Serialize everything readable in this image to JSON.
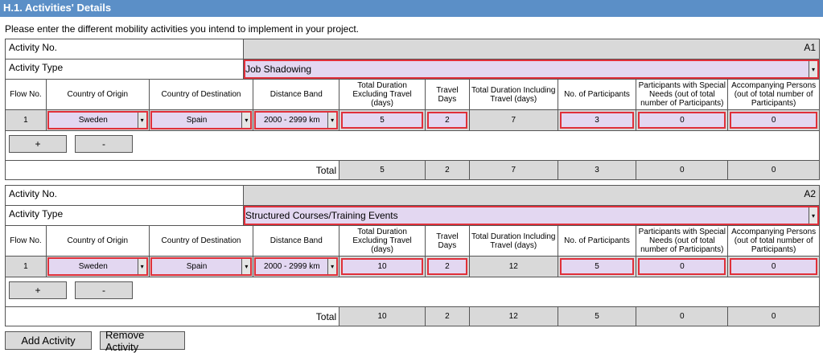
{
  "section_title": "H.1. Activities' Details",
  "intro": "Please enter the different mobility activities you intend to implement in your project.",
  "labels": {
    "activity_no": "Activity No.",
    "activity_type": "Activity Type",
    "total": "Total",
    "plus": "+",
    "minus": "-",
    "dropdown_arrow": "▾"
  },
  "columns": [
    "Flow No.",
    "Country of Origin",
    "Country of Destination",
    "Distance Band",
    "Total Duration Excluding Travel (days)",
    "Travel Days",
    "Total Duration Including Travel (days)",
    "No. of Participants",
    "Participants with Special Needs (out of total number of Participants)",
    "Accompanying Persons (out of total number of Participants)"
  ],
  "activities": [
    {
      "id": "A1",
      "type": "Job Shadowing",
      "flow": {
        "no": "1",
        "origin": "Sweden",
        "destination": "Spain",
        "distance": "2000 - 2999 km",
        "duration_excl": "5",
        "travel_days": "2",
        "duration_incl": "7",
        "participants": "3",
        "special_needs": "0",
        "accompanying": "0"
      },
      "totals": {
        "duration_excl": "5",
        "travel_days": "2",
        "duration_incl": "7",
        "participants": "3",
        "special_needs": "0",
        "accompanying": "0"
      }
    },
    {
      "id": "A2",
      "type": "Structured Courses/Training Events",
      "flow": {
        "no": "1",
        "origin": "Sweden",
        "destination": "Spain",
        "distance": "2000 - 2999 km",
        "duration_excl": "10",
        "travel_days": "2",
        "duration_incl": "12",
        "participants": "5",
        "special_needs": "0",
        "accompanying": "0"
      },
      "totals": {
        "duration_excl": "10",
        "travel_days": "2",
        "duration_incl": "12",
        "participants": "5",
        "special_needs": "0",
        "accompanying": "0"
      }
    }
  ],
  "buttons": {
    "add_activity": "Add Activity",
    "remove_activity": "Remove Activity"
  },
  "colors": {
    "header_bg": "#5b8fc7",
    "field_bg": "#e3d7f1",
    "field_border": "#e0303a",
    "grey": "#d9d9d9"
  }
}
